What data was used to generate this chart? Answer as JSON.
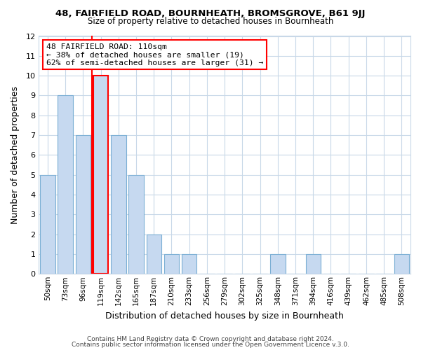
{
  "title1": "48, FAIRFIELD ROAD, BOURNHEATH, BROMSGROVE, B61 9JJ",
  "title2": "Size of property relative to detached houses in Bournheath",
  "xlabel": "Distribution of detached houses by size in Bournheath",
  "ylabel": "Number of detached properties",
  "categories": [
    "50sqm",
    "73sqm",
    "96sqm",
    "119sqm",
    "142sqm",
    "165sqm",
    "187sqm",
    "210sqm",
    "233sqm",
    "256sqm",
    "279sqm",
    "302sqm",
    "325sqm",
    "348sqm",
    "371sqm",
    "394sqm",
    "416sqm",
    "439sqm",
    "462sqm",
    "485sqm",
    "508sqm"
  ],
  "values": [
    5,
    9,
    7,
    10,
    7,
    5,
    2,
    1,
    1,
    0,
    0,
    0,
    0,
    1,
    0,
    1,
    0,
    0,
    0,
    0,
    1
  ],
  "bar_color": "#c6d9f0",
  "bar_edge_color": "#7bafd4",
  "highlight_bar_index": 3,
  "highlight_edge_color": "#ff0000",
  "ylim": [
    0,
    12
  ],
  "yticks": [
    0,
    1,
    2,
    3,
    4,
    5,
    6,
    7,
    8,
    9,
    10,
    11,
    12
  ],
  "annotation_title": "48 FAIRFIELD ROAD: 110sqm",
  "annotation_line1": "← 38% of detached houses are smaller (19)",
  "annotation_line2": "62% of semi-detached houses are larger (31) →",
  "annotation_box_color": "#ffffff",
  "annotation_box_edge": "#ff0000",
  "footer1": "Contains HM Land Registry data © Crown copyright and database right 2024.",
  "footer2": "Contains public sector information licensed under the Open Government Licence v.3.0.",
  "background_color": "#ffffff",
  "grid_color": "#c8d8e8"
}
